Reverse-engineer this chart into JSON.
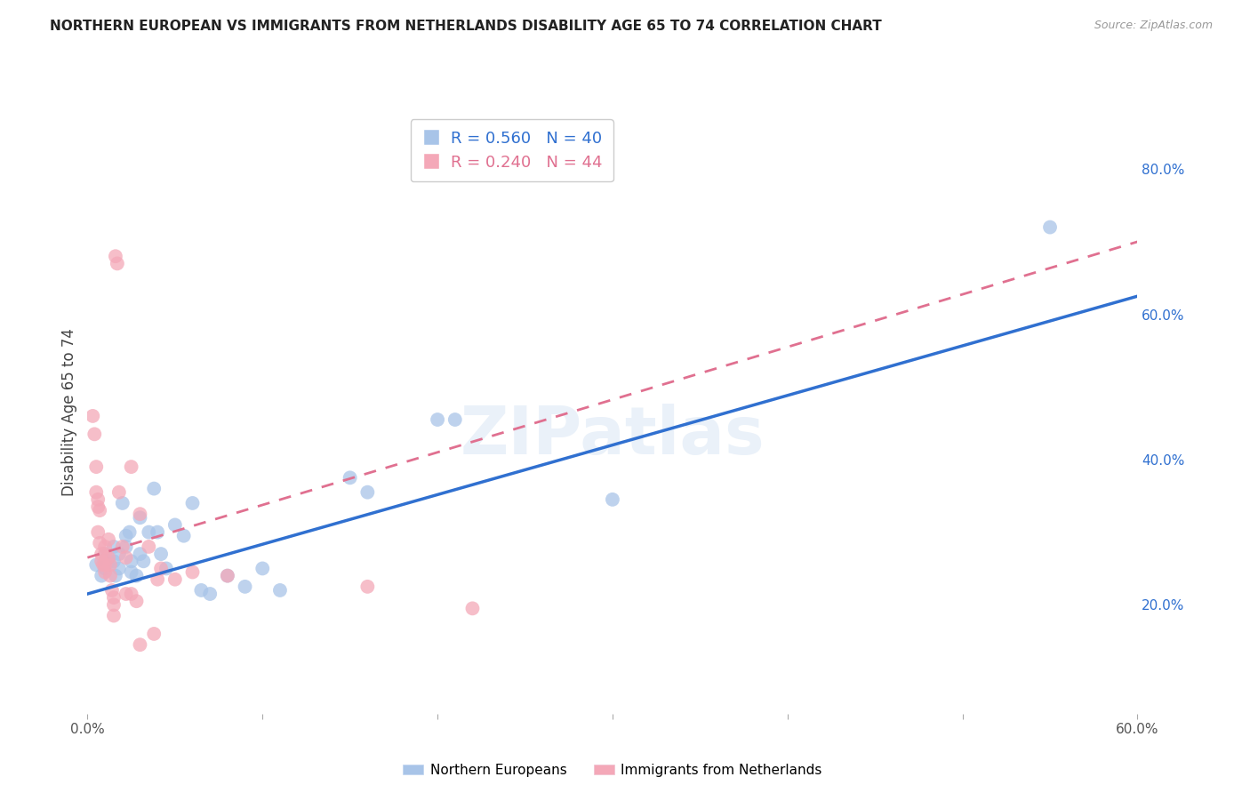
{
  "title": "NORTHERN EUROPEAN VS IMMIGRANTS FROM NETHERLANDS DISABILITY AGE 65 TO 74 CORRELATION CHART",
  "source": "Source: ZipAtlas.com",
  "ylabel": "Disability Age 65 to 74",
  "xlim": [
    0.0,
    0.6
  ],
  "ylim": [
    0.05,
    0.88
  ],
  "x_tick_positions": [
    0.0,
    0.1,
    0.2,
    0.3,
    0.4,
    0.5,
    0.6
  ],
  "x_tick_labels": [
    "0.0%",
    "",
    "",
    "",
    "",
    "",
    "60.0%"
  ],
  "y_ticks_right": [
    0.2,
    0.4,
    0.6,
    0.8
  ],
  "y_tick_labels_right": [
    "20.0%",
    "40.0%",
    "60.0%",
    "80.0%"
  ],
  "blue_R": 0.56,
  "blue_N": 40,
  "pink_R": 0.24,
  "pink_N": 44,
  "blue_color": "#a8c4e8",
  "pink_color": "#f4a8b8",
  "blue_line_color": "#3070d0",
  "pink_line_color": "#e07090",
  "watermark": "ZIPatlas",
  "legend_label_blue": "Northern Europeans",
  "legend_label_pink": "Immigrants from Netherlands",
  "blue_scatter_x": [
    0.005,
    0.008,
    0.01,
    0.01,
    0.012,
    0.015,
    0.015,
    0.016,
    0.018,
    0.018,
    0.02,
    0.022,
    0.022,
    0.024,
    0.025,
    0.025,
    0.028,
    0.03,
    0.03,
    0.032,
    0.035,
    0.038,
    0.04,
    0.042,
    0.045,
    0.05,
    0.055,
    0.06,
    0.065,
    0.07,
    0.08,
    0.09,
    0.1,
    0.11,
    0.15,
    0.16,
    0.2,
    0.21,
    0.3,
    0.55
  ],
  "blue_scatter_y": [
    0.255,
    0.24,
    0.27,
    0.25,
    0.26,
    0.28,
    0.26,
    0.24,
    0.27,
    0.25,
    0.34,
    0.295,
    0.28,
    0.3,
    0.26,
    0.245,
    0.24,
    0.32,
    0.27,
    0.26,
    0.3,
    0.36,
    0.3,
    0.27,
    0.25,
    0.31,
    0.295,
    0.34,
    0.22,
    0.215,
    0.24,
    0.225,
    0.25,
    0.22,
    0.375,
    0.355,
    0.455,
    0.455,
    0.345,
    0.72
  ],
  "pink_scatter_x": [
    0.003,
    0.004,
    0.005,
    0.005,
    0.006,
    0.006,
    0.006,
    0.007,
    0.007,
    0.008,
    0.008,
    0.009,
    0.01,
    0.01,
    0.01,
    0.01,
    0.012,
    0.012,
    0.013,
    0.013,
    0.014,
    0.015,
    0.015,
    0.015,
    0.016,
    0.017,
    0.018,
    0.02,
    0.022,
    0.022,
    0.025,
    0.025,
    0.028,
    0.03,
    0.03,
    0.035,
    0.038,
    0.04,
    0.042,
    0.05,
    0.06,
    0.08,
    0.16,
    0.22
  ],
  "pink_scatter_y": [
    0.46,
    0.435,
    0.39,
    0.355,
    0.345,
    0.335,
    0.3,
    0.33,
    0.285,
    0.27,
    0.26,
    0.255,
    0.28,
    0.27,
    0.255,
    0.245,
    0.29,
    0.265,
    0.255,
    0.24,
    0.22,
    0.21,
    0.2,
    0.185,
    0.68,
    0.67,
    0.355,
    0.28,
    0.265,
    0.215,
    0.39,
    0.215,
    0.205,
    0.145,
    0.325,
    0.28,
    0.16,
    0.235,
    0.25,
    0.235,
    0.245,
    0.24,
    0.225,
    0.195
  ],
  "grid_color": "#e0e0e0",
  "background_color": "#ffffff",
  "blue_line_x0": 0.0,
  "blue_line_y0": 0.215,
  "blue_line_x1": 0.6,
  "blue_line_y1": 0.625,
  "pink_line_x0": 0.0,
  "pink_line_y0": 0.265,
  "pink_line_x1": 0.6,
  "pink_line_y1": 0.7
}
